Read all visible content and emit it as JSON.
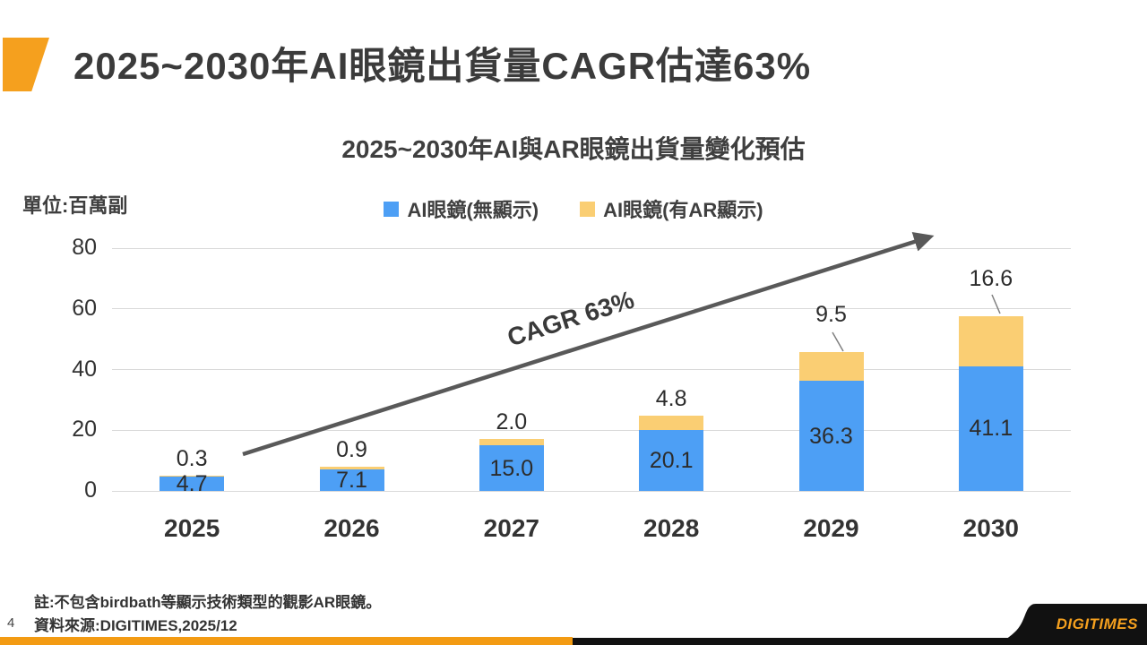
{
  "slide": {
    "title": "2025~2030年AI眼鏡出貨量CAGR估達63%",
    "page_number": "4",
    "note": "註:不包含birdbath等顯示技術類型的觀影AR眼鏡。",
    "source": "資料來源:DIGITIMES,2025/12",
    "logo_text": "DIGITIMES",
    "accent_color": "#F5A01E"
  },
  "chart_data": {
    "type": "bar",
    "stacked": true,
    "title": "2025~2030年AI與AR眼鏡出貨量變化預估",
    "unit_label": "單位:百萬副",
    "categories": [
      "2025",
      "2026",
      "2027",
      "2028",
      "2029",
      "2030"
    ],
    "series": [
      {
        "name": "AI眼鏡(無顯示)",
        "color": "#4D9FF5",
        "values": [
          4.7,
          7.1,
          15.0,
          20.1,
          36.3,
          41.1
        ],
        "labels": [
          "4.7",
          "7.1",
          "15.0",
          "20.1",
          "36.3",
          "41.1"
        ]
      },
      {
        "name": "AI眼鏡(有AR顯示)",
        "color": "#FACE73",
        "values": [
          0.3,
          0.9,
          2.0,
          4.8,
          9.5,
          16.6
        ],
        "labels": [
          "0.3",
          "0.9",
          "2.0",
          "4.8",
          "9.5",
          "16.6"
        ]
      }
    ],
    "ylim": [
      0,
      80
    ],
    "yticks": [
      0,
      20,
      40,
      60,
      80
    ],
    "grid": true,
    "legend_position": "top",
    "annotation": {
      "text": "CAGR 63%"
    },
    "label_leader_lines": [
      false,
      false,
      false,
      false,
      true,
      true
    ]
  }
}
